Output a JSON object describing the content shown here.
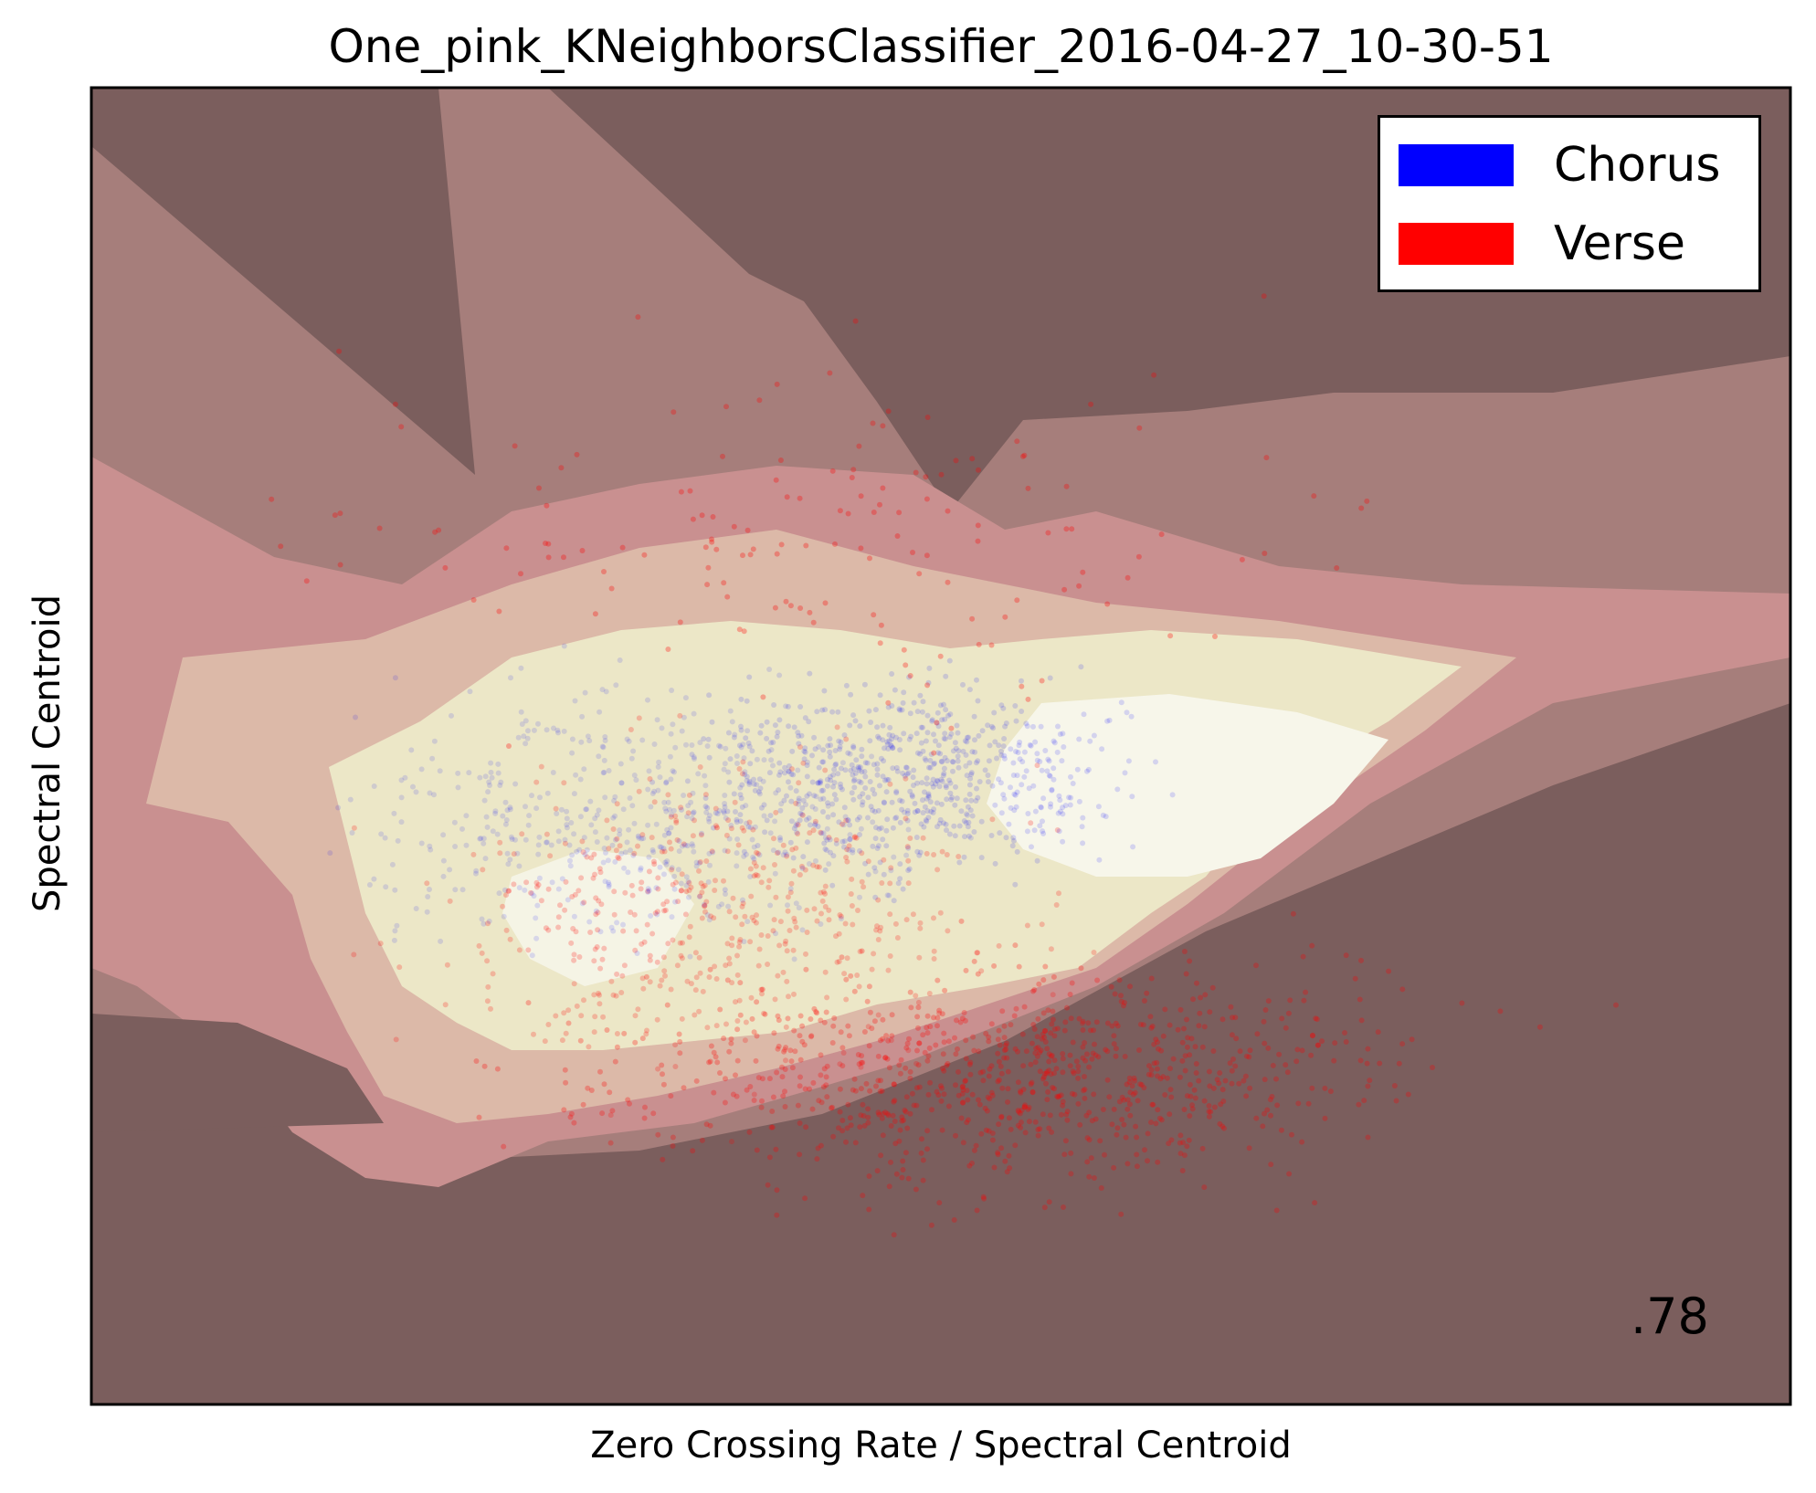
{
  "chart_data": {
    "type": "scatter",
    "title": "One_pink_KNeighborsClassifier_2016-04-27_10-30-51",
    "xlabel": "Zero Crossing Rate / Spectral Centroid",
    "ylabel": "Spectral Centroid",
    "x_ticks": [],
    "y_ticks": [],
    "grid": false,
    "legend_position": "top-right",
    "annotation": ".78",
    "background": "filled decision-surface contours (dark brown → pink → cream → white)",
    "contour_colors": [
      "#7b5e5d",
      "#a67e7b",
      "#c99090",
      "#dcb9a8",
      "#ece7c7",
      "#f7f6ea"
    ],
    "series": [
      {
        "name": "Chorus",
        "color": "#0000ff"
      },
      {
        "name": "Verse",
        "color": "#ff0000"
      }
    ]
  }
}
